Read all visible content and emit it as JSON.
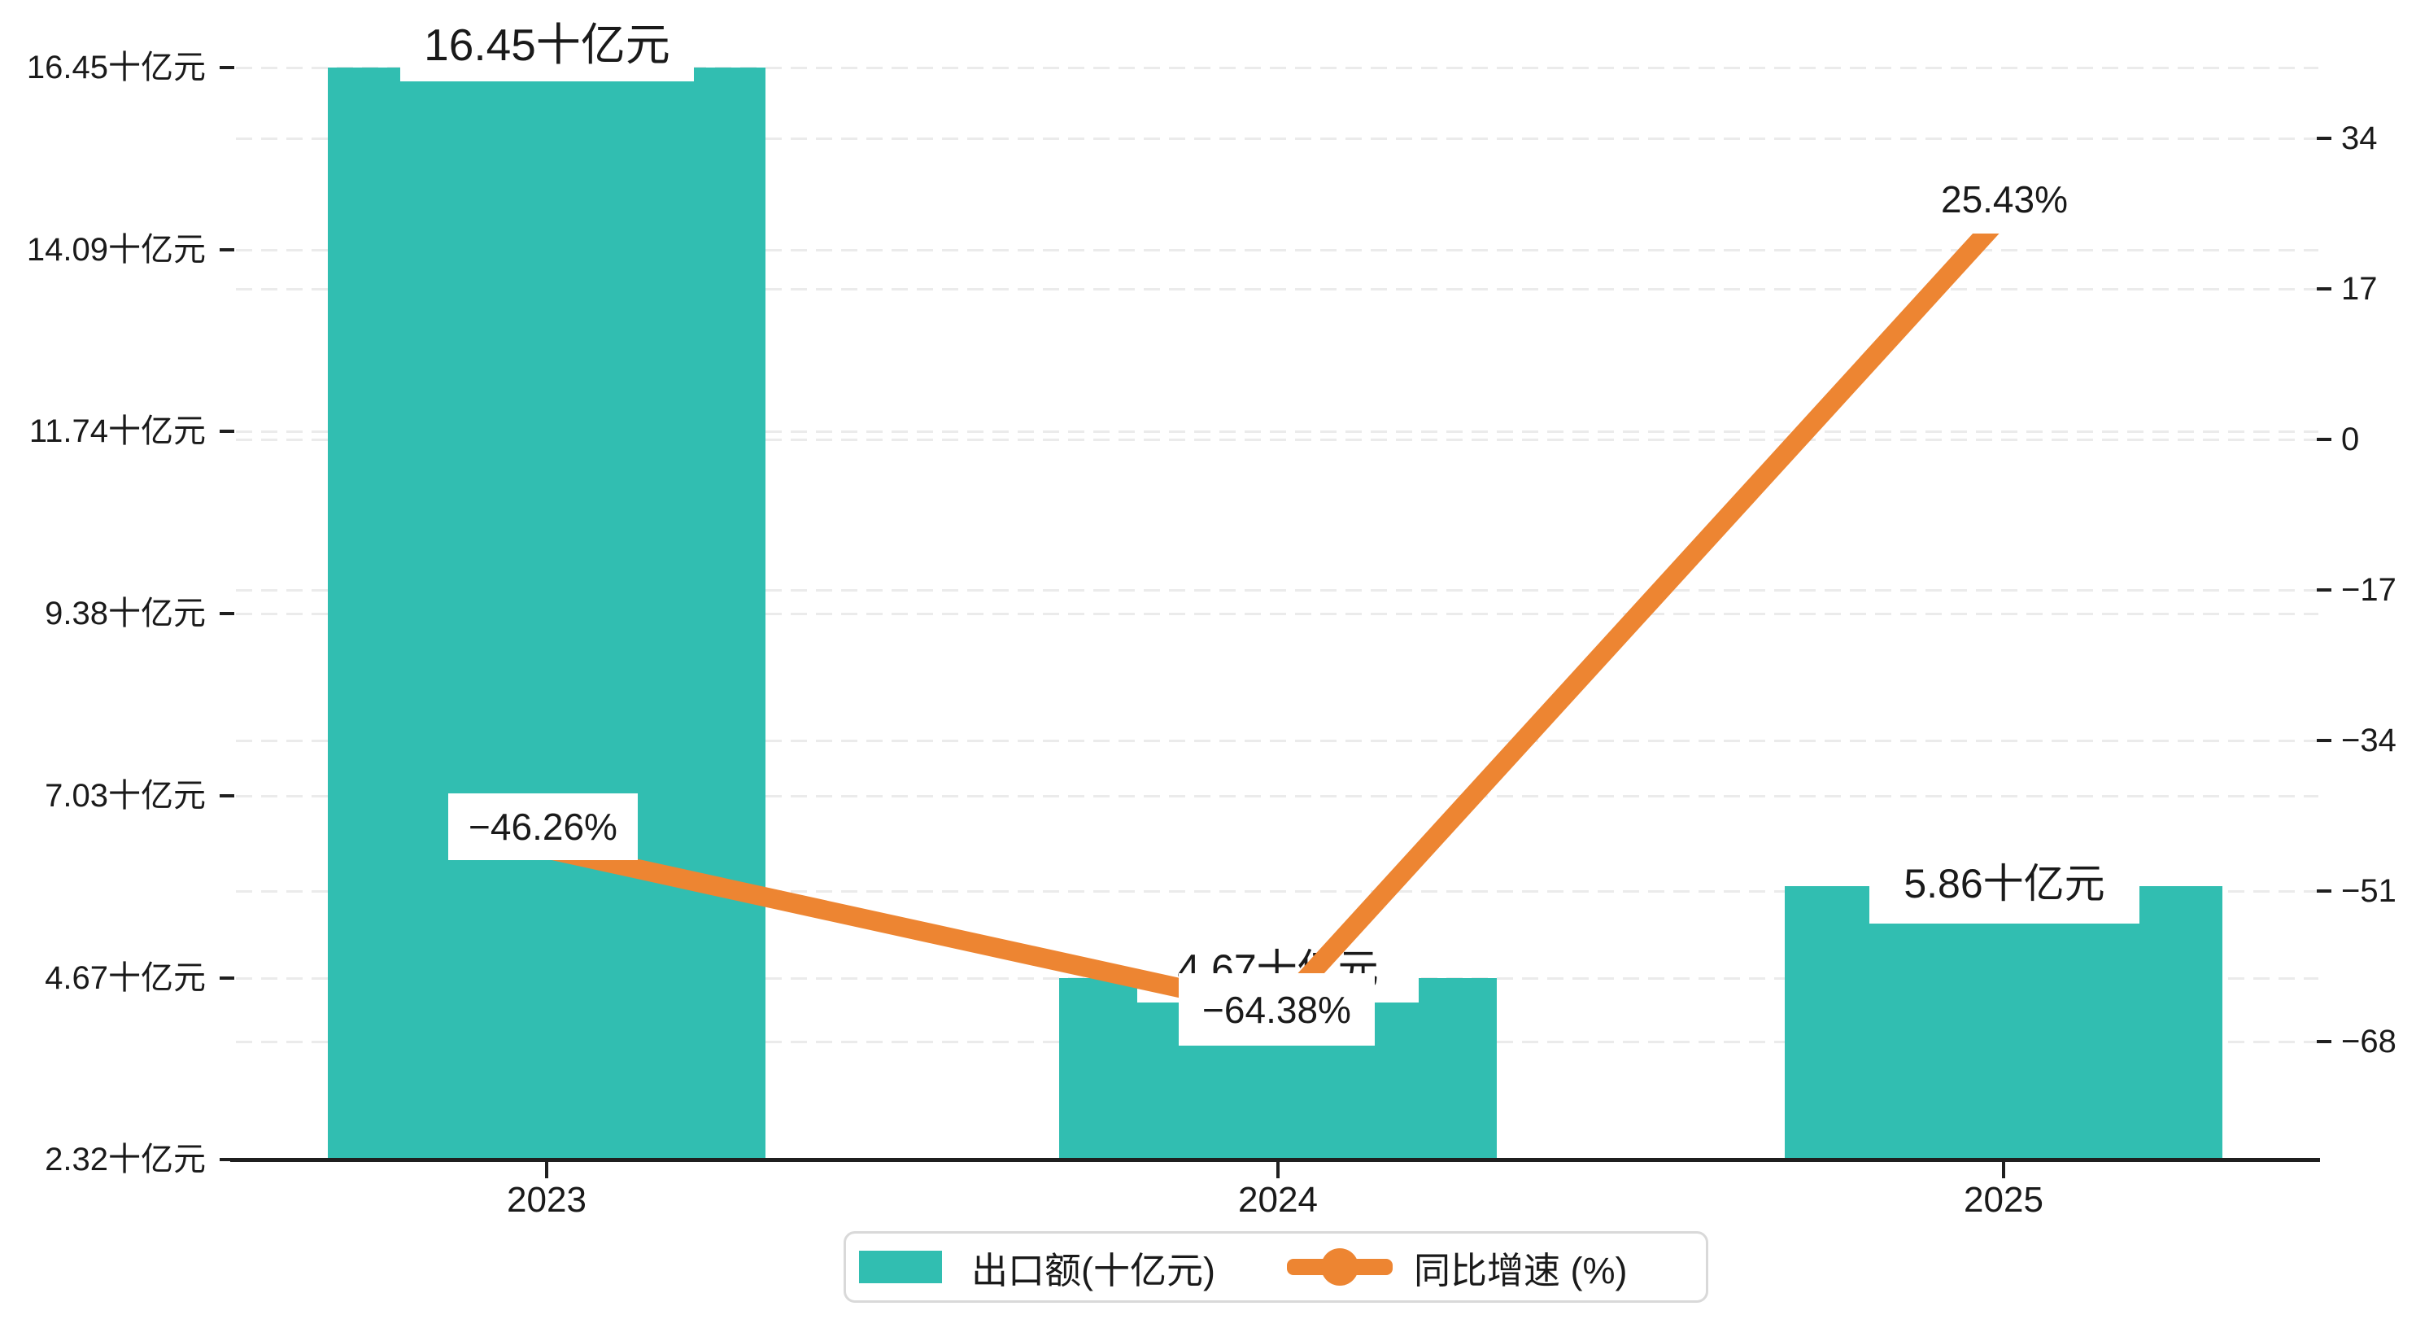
{
  "theme": {
    "bar_color": "#31beb1",
    "line_color": "#ed8532",
    "axis_color": "#1f1f1f",
    "grid_color": "#ebebeb",
    "label_box_color": "#ffffff",
    "legend_border_color": "#d9d9d9",
    "background": "#ffffff"
  },
  "legend": {
    "bar_label": "出口额(十亿元)",
    "line_label": "同比增速 (%)"
  },
  "chart_data": {
    "type": "bar",
    "subtype": "dual-axis bar + line combo",
    "categories": [
      "2023",
      "2024",
      "2025"
    ],
    "series": [
      {
        "name": "出口额(十亿元)",
        "type": "bar",
        "axis": "left",
        "unit": "十亿元",
        "color": "#31beb1",
        "values": [
          16.45,
          4.67,
          5.86
        ],
        "point_labels": [
          "16.45十亿元",
          "4.67十亿元",
          "5.86十亿元"
        ]
      },
      {
        "name": "同比增速 (%)",
        "type": "line",
        "axis": "right",
        "unit": "%",
        "color": "#ed8532",
        "values": [
          -46.26,
          -64.38,
          25.43
        ],
        "point_labels": [
          "−46.26%",
          "−64.38%",
          "25.43%"
        ]
      }
    ],
    "left_axis": {
      "min": 2.32,
      "max": 16.45,
      "tick_values": [
        16.45,
        14.09,
        11.74,
        9.38,
        7.03,
        4.67,
        2.32
      ],
      "tick_labels": [
        "16.45十亿元",
        "14.09十亿元",
        "11.74十亿元",
        "9.38十亿元",
        "7.03十亿元",
        "4.67十亿元",
        "2.32十亿元"
      ]
    },
    "right_axis": {
      "min": -68,
      "max": 34,
      "tick_values": [
        34,
        17,
        0,
        -17,
        -34,
        -51,
        -68
      ],
      "tick_labels": [
        "34",
        "17",
        "0",
        "−17",
        "−34",
        "−51",
        "−68"
      ]
    },
    "grid": "dashed horizontal gridlines for both axes",
    "legend_position": "bottom center",
    "title": ""
  }
}
